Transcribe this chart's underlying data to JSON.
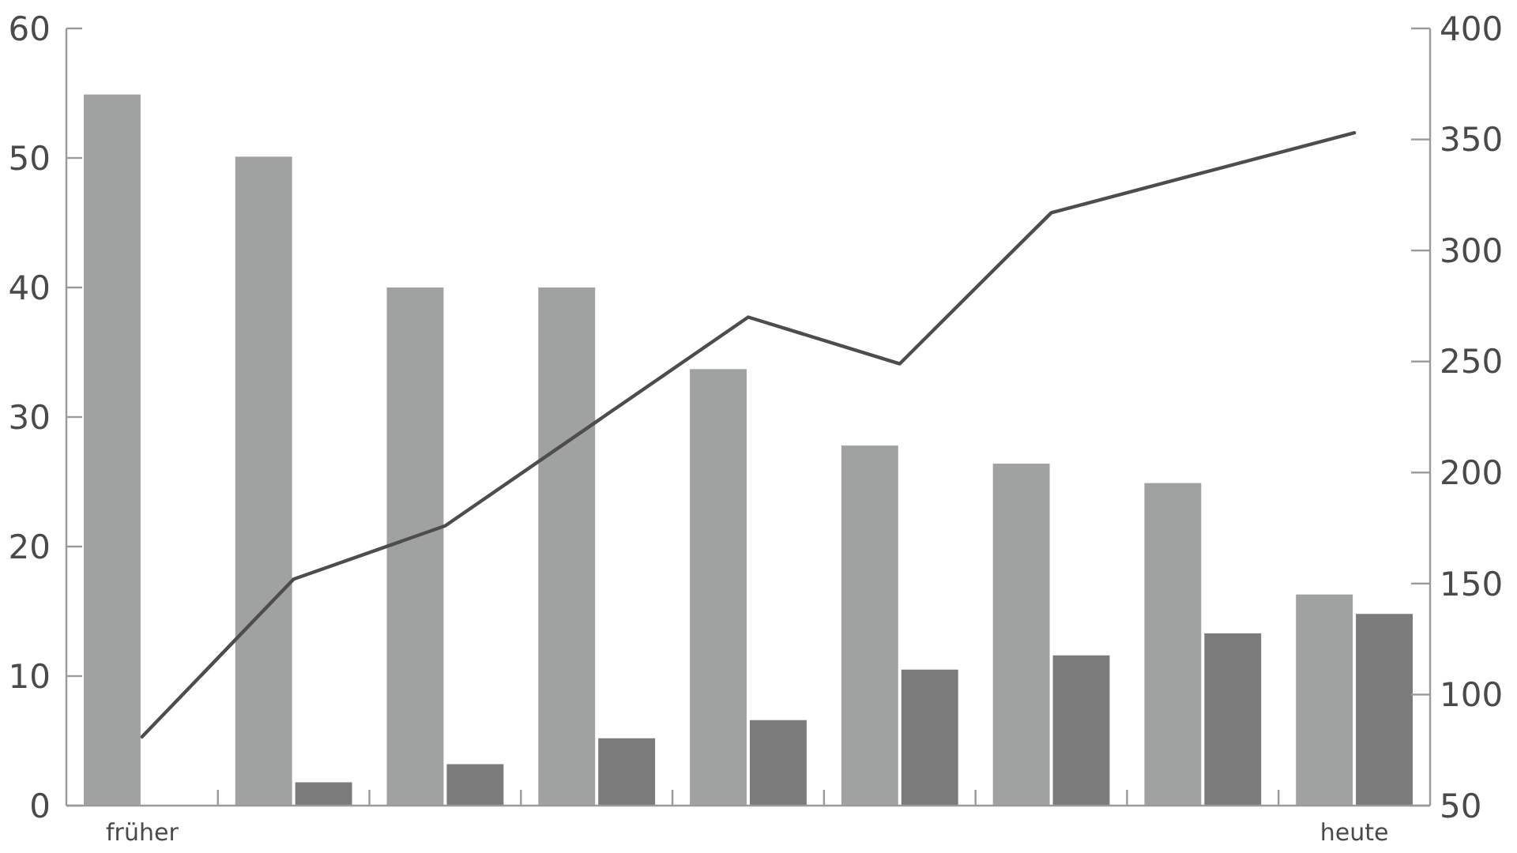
{
  "chart_data": {
    "type": "bar",
    "categories": [
      "früher",
      null,
      null,
      null,
      null,
      null,
      null,
      null,
      "heute"
    ],
    "series": [
      {
        "color": "#a0a2a1",
        "values": [
          54.9,
          50.1,
          40,
          40,
          33.7,
          27.8,
          26.4,
          24.9,
          16.3
        ]
      },
      {
        "color": "#7b7b7b",
        "values": [
          null,
          1.8,
          3.2,
          5.2,
          6.6,
          10.5,
          11.6,
          13.3,
          14.8
        ]
      },
      {
        "type": "line",
        "axis": "y2",
        "color": "#4d4d4d",
        "values": [
          81,
          152,
          176,
          223,
          270,
          249,
          317,
          335,
          353
        ]
      }
    ],
    "ylim": [
      0,
      60
    ],
    "yticks": [
      0,
      10,
      20,
      30,
      40,
      50,
      60
    ],
    "y2lim": [
      50,
      400
    ],
    "y2ticks": [
      50,
      100,
      150,
      200,
      250,
      300,
      350,
      400
    ],
    "grid": false,
    "marker": "none",
    "line_style": "solid"
  }
}
